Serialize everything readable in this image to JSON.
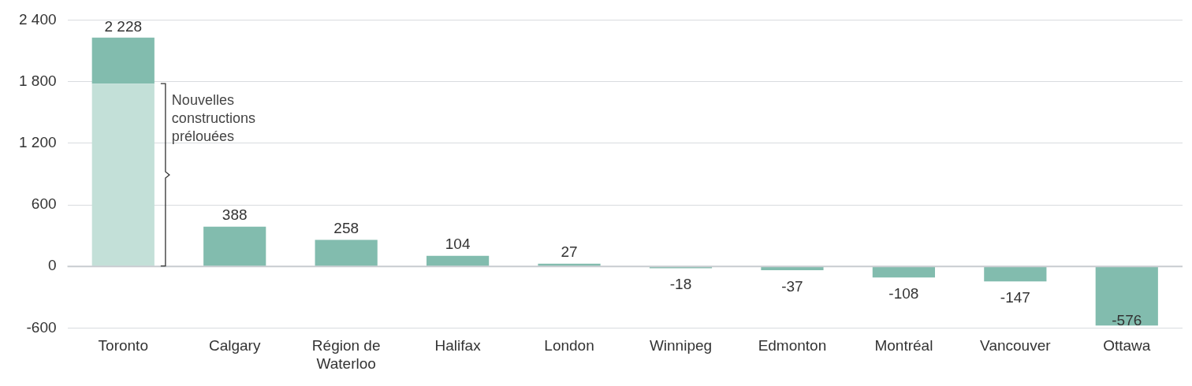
{
  "chart_data": {
    "type": "bar",
    "stacked": true,
    "categories": [
      "Toronto",
      "Calgary",
      "Région de Waterloo",
      "Halifax",
      "London",
      "Winnipeg",
      "Edmonton",
      "Montréal",
      "Vancouver",
      "Ottawa"
    ],
    "series": [
      {
        "color": "#c3e0d8",
        "values": [
          1780,
          null,
          null,
          null,
          null,
          null,
          null,
          null,
          null,
          null
        ]
      },
      {
        "color": "#82bcae",
        "values": [
          448,
          388,
          258,
          104,
          27,
          -18,
          -37,
          -108,
          -147,
          -576
        ]
      }
    ],
    "totals": [
      "2 228",
      "388",
      "258",
      "104",
      "27",
      "-18",
      "-37",
      "-108",
      "-147",
      "-576"
    ],
    "ylim": [
      -600,
      2400
    ],
    "yticks": [
      {
        "value": -600,
        "label": "-600"
      },
      {
        "value": 0,
        "label": "0"
      },
      {
        "value": 600,
        "label": "600"
      },
      {
        "value": 1200,
        "label": "1 200"
      },
      {
        "value": 1800,
        "label": "1 800"
      },
      {
        "value": 2400,
        "label": "2 400"
      }
    ],
    "grid": "y",
    "legend": false,
    "annotations": [
      "Nouvelles constructions prélouées"
    ]
  }
}
